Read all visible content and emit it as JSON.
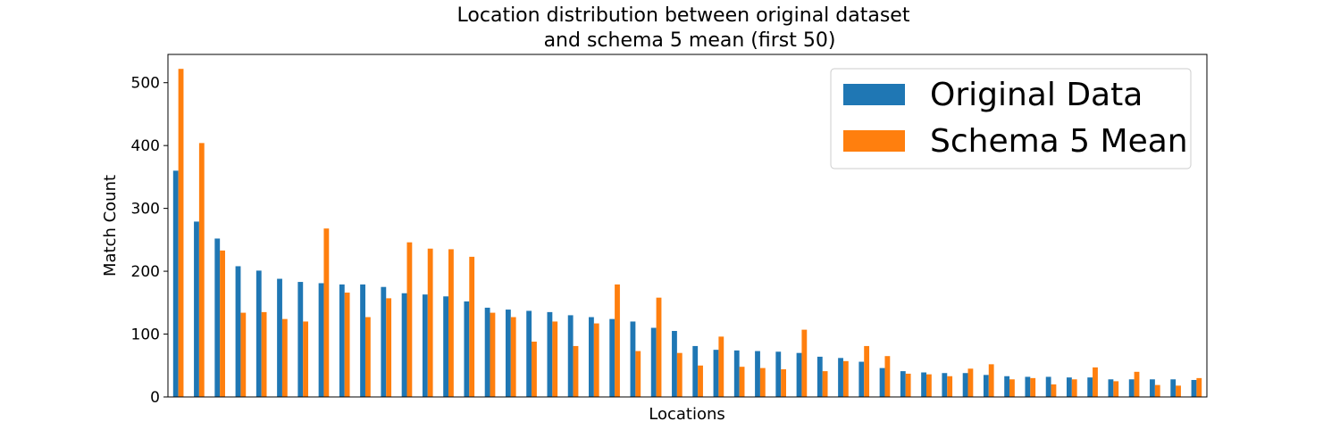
{
  "chart_data": {
    "type": "bar",
    "title_lines": [
      "Location distribution between original dataset",
      "and schema 5 mean (first 50)"
    ],
    "xlabel": "Locations",
    "ylabel": "Match Count",
    "ylim": [
      0,
      545
    ],
    "yticks": [
      0,
      100,
      200,
      300,
      400,
      500
    ],
    "grid": false,
    "legend_position": "top-right",
    "colors": {
      "original": "#1f77b4",
      "schema": "#ff7f0e"
    },
    "series": [
      {
        "name": "Original Data",
        "values": [
          360,
          279,
          252,
          208,
          201,
          188,
          183,
          181,
          179,
          179,
          175,
          165,
          163,
          160,
          152,
          142,
          139,
          137,
          135,
          130,
          127,
          124,
          120,
          110,
          105,
          81,
          75,
          74,
          73,
          72,
          70,
          64,
          62,
          56,
          46,
          41,
          39,
          38,
          38,
          35,
          33,
          32,
          32,
          31,
          31,
          28,
          28,
          28,
          28,
          27
        ]
      },
      {
        "name": "Schema 5 Mean",
        "values": [
          522,
          404,
          233,
          134,
          135,
          124,
          120,
          268,
          166,
          127,
          157,
          246,
          236,
          235,
          223,
          134,
          127,
          88,
          120,
          81,
          117,
          179,
          73,
          158,
          70,
          50,
          96,
          48,
          46,
          44,
          107,
          41,
          57,
          81,
          65,
          37,
          36,
          33,
          45,
          52,
          28,
          30,
          20,
          28,
          47,
          25,
          40,
          19,
          18,
          30
        ]
      }
    ]
  }
}
